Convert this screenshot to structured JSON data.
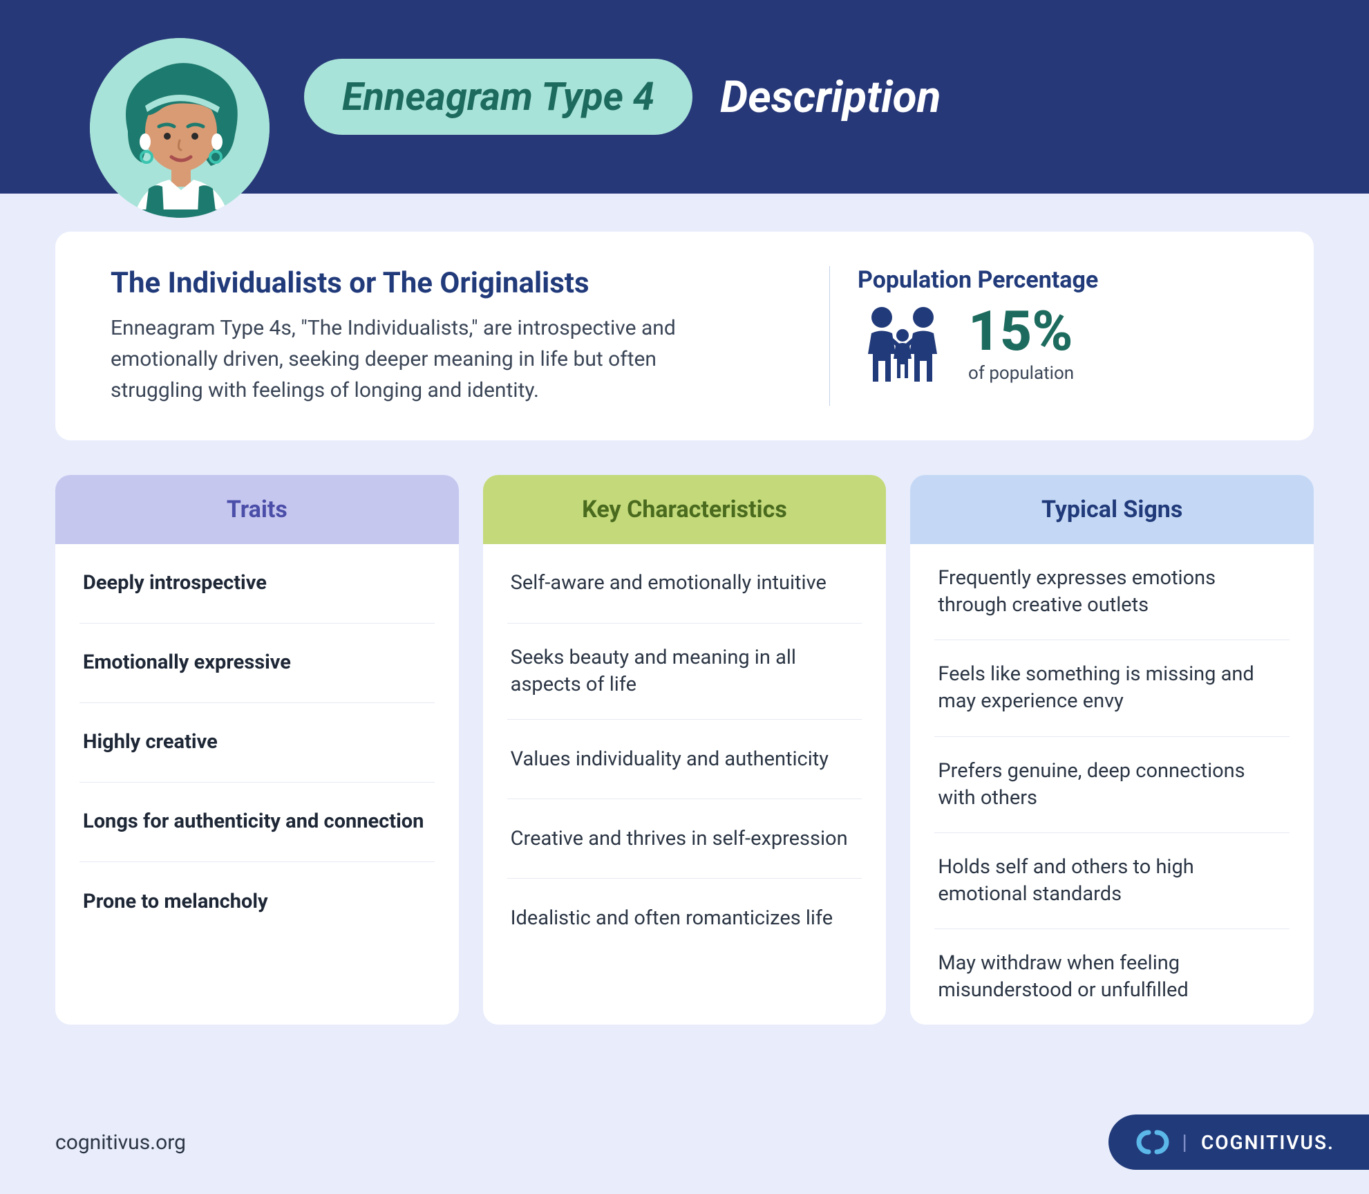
{
  "colors": {
    "header_bg": "#273878",
    "page_bg": "#e8ecfb",
    "pill_bg": "#a8e3d9",
    "pill_text": "#1d6b5e",
    "title_white": "#ffffff",
    "card_bg": "#ffffff",
    "heading_navy": "#213a7a",
    "body_text": "#3a4556",
    "accent_teal": "#1d6b5e",
    "col_purple_bg": "#c6c7ef",
    "col_purple_text": "#4b4ea8",
    "col_green_bg": "#c3d97a",
    "col_green_text": "#4a6b1e",
    "col_blue_bg": "#c4d8f5",
    "col_blue_text": "#213a7a",
    "divider": "#e5e9f2"
  },
  "typography": {
    "pill_fontsize": 56,
    "desc_title_fontsize": 64,
    "summary_title_fontsize": 42,
    "summary_body_fontsize": 30,
    "pop_title_fontsize": 34,
    "pop_pct_fontsize": 80,
    "col_header_fontsize": 34,
    "col_item_fontsize": 29
  },
  "header": {
    "pill_text": "Enneagram Type 4",
    "desc_title": "Description"
  },
  "summary": {
    "title": "The Individualists or The Originalists",
    "body": "Enneagram Type 4s, \"The Individualists,\" are introspective and emotionally driven, seeking deeper meaning in life but often struggling with feelings of longing and identity.",
    "pop_title": "Population Percentage",
    "pop_pct": "15%",
    "pop_sub": "of population"
  },
  "columns": [
    {
      "header": "Traits",
      "style": "purple",
      "bold": true,
      "items": [
        "Deeply introspective",
        "Emotionally expressive",
        "Highly creative",
        "Longs for authenticity and connection",
        "Prone to melancholy"
      ]
    },
    {
      "header": "Key Characteristics",
      "style": "green",
      "bold": false,
      "items": [
        "Self-aware and emotionally intuitive",
        "Seeks beauty and meaning in all aspects of life",
        "Values individuality and authenticity",
        "Creative and thrives in self-expression",
        "Idealistic and often romanticizes life"
      ]
    },
    {
      "header": "Typical Signs",
      "style": "blue",
      "bold": false,
      "items": [
        "Frequently expresses emotions through creative outlets",
        "Feels like something is missing and may experience envy",
        "Prefers genuine, deep connections with others",
        "Holds self and others to high emotional standards",
        "May withdraw when feeling misunderstood or unfulfilled"
      ]
    }
  ],
  "footer": {
    "url": "cognitivus.org",
    "brand": "COGNITIVUS."
  }
}
